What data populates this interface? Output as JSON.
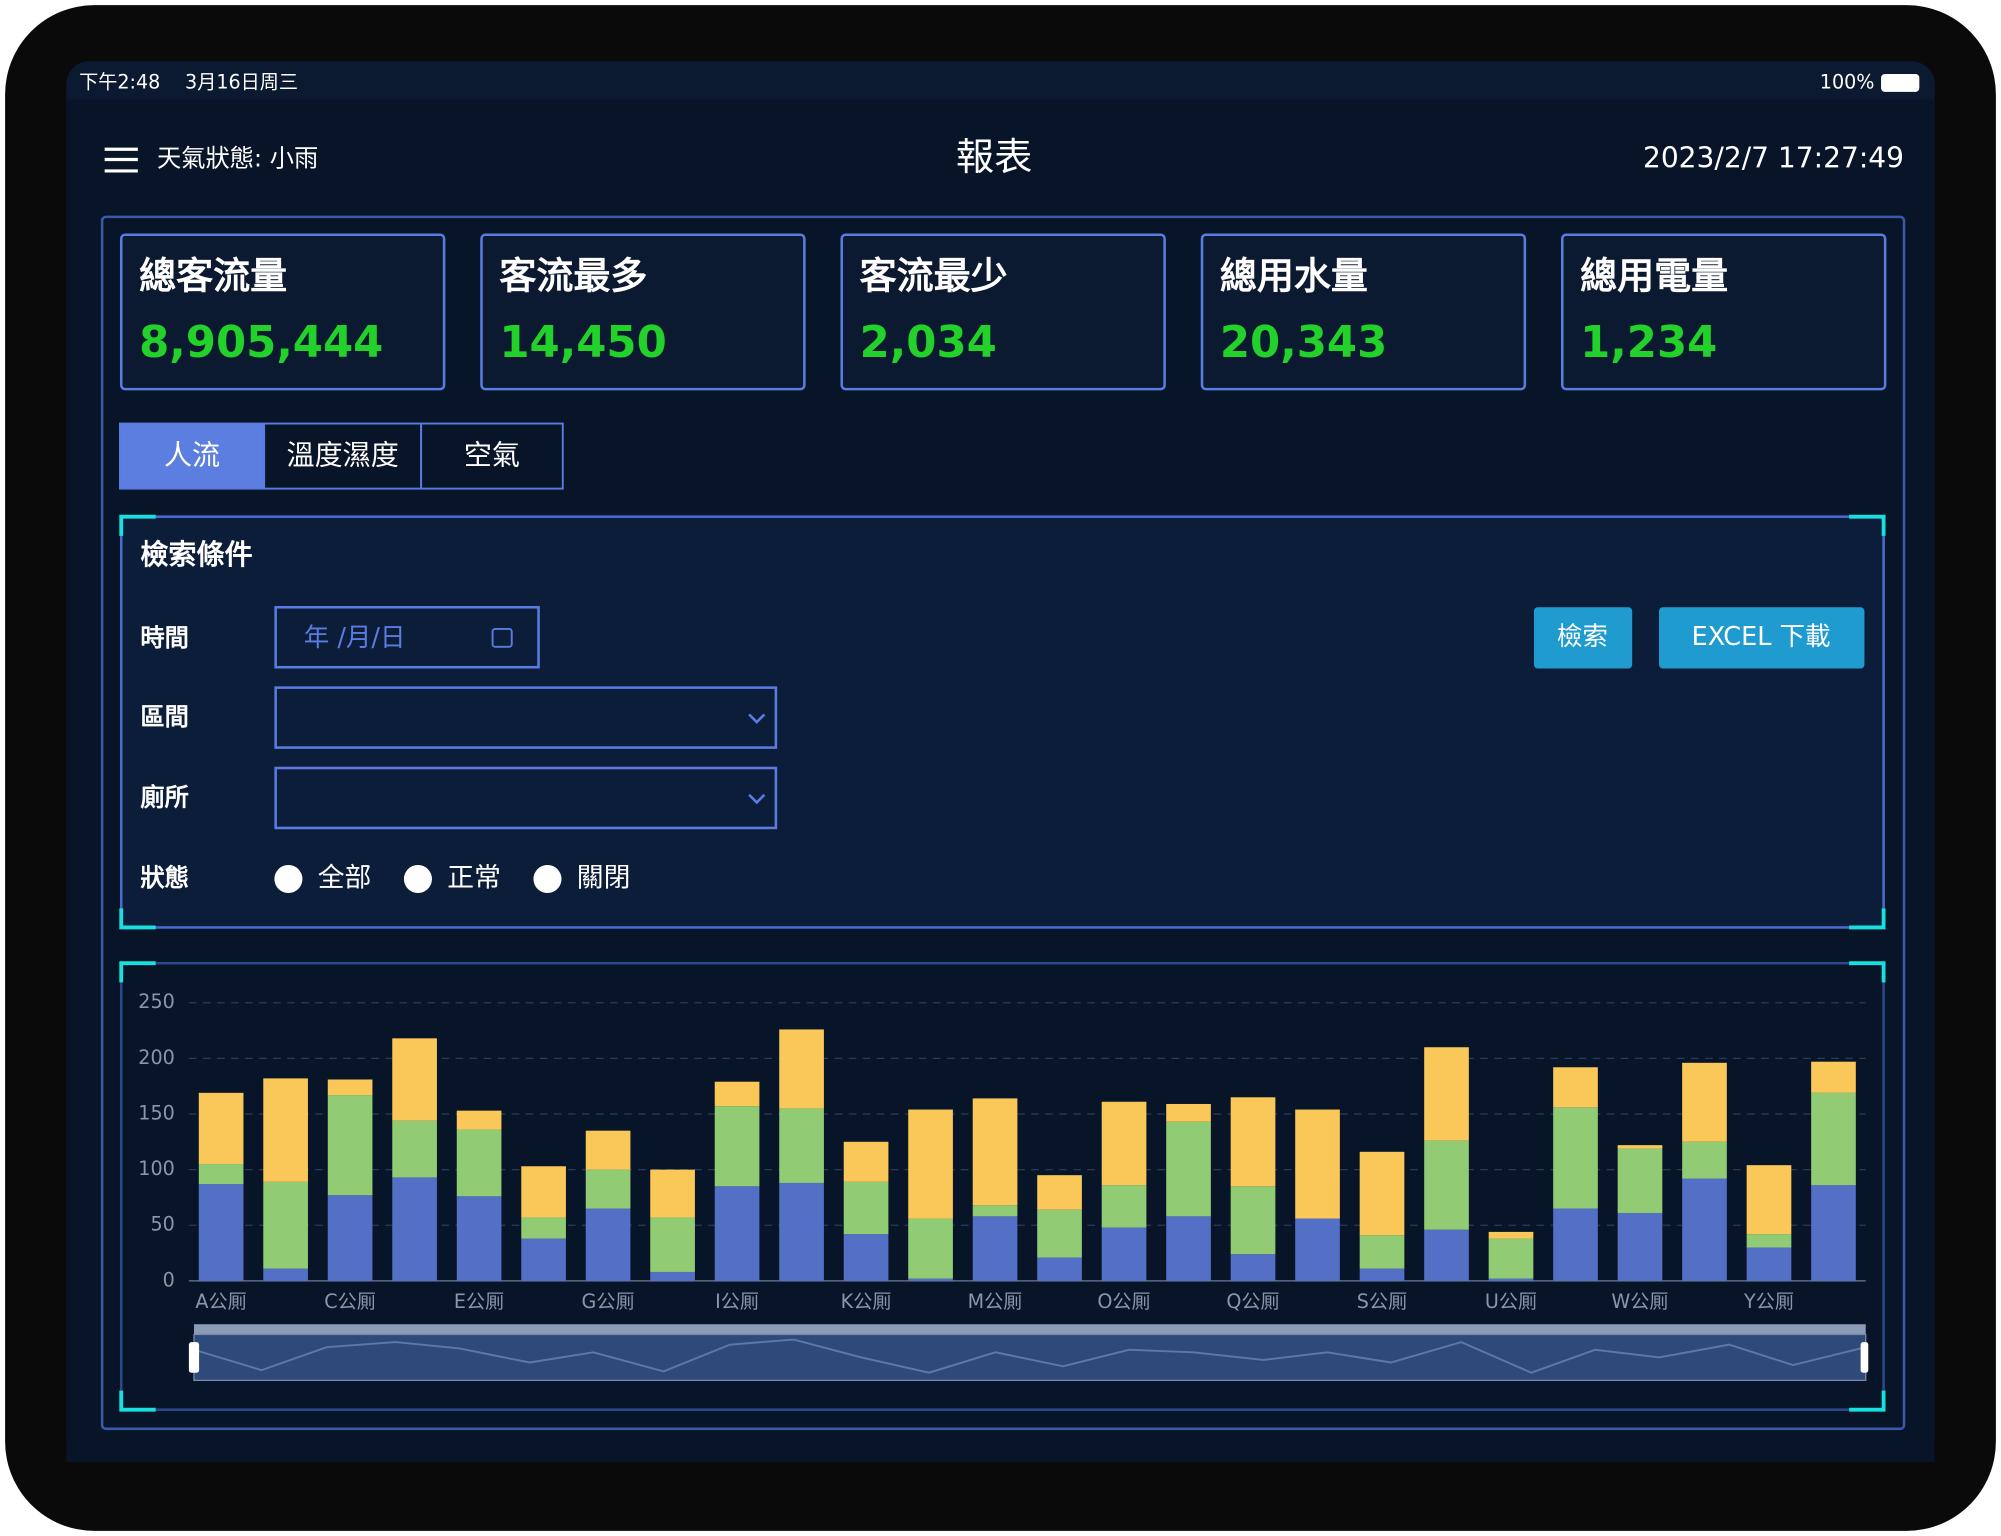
{
  "status_bar": {
    "time": "下午2:48",
    "date": "3月16日周三",
    "battery": "100%"
  },
  "header": {
    "weather": "天氣狀態: 小雨",
    "title": "報表",
    "datetime": "2023/2/7 17:27:49"
  },
  "stats": [
    {
      "label": "總客流量",
      "value": "8,905,444"
    },
    {
      "label": "客流最多",
      "value": "14,450"
    },
    {
      "label": "客流最少",
      "value": "2,034"
    },
    {
      "label": "總用水量",
      "value": "20,343"
    },
    {
      "label": "總用電量",
      "value": "1,234"
    }
  ],
  "tabs": [
    "人流",
    "溫度濕度",
    "空氣"
  ],
  "search": {
    "title": "檢索條件",
    "time_label": "時間",
    "date_placeholder": "年 /月/日",
    "range_label": "區間",
    "toilet_label": "廁所",
    "status_label": "狀態",
    "status_options": [
      "全部",
      "正常",
      "關閉"
    ],
    "search_button": "檢索",
    "excel_button": "EXCEL 下載"
  },
  "chart_data": {
    "type": "stacked_bar",
    "categories": [
      "A公厠",
      null,
      "C公厠",
      null,
      "E公厠",
      null,
      "G公厠",
      null,
      "I公厠",
      null,
      "K公厠",
      null,
      "M公厠",
      null,
      "O公厠",
      null,
      "Q公厠",
      null,
      "S公厠",
      null,
      "U公厠",
      null,
      "W公厠",
      null,
      "Y公厠",
      null
    ],
    "series": [
      {
        "color": "#5470c6",
        "values": [
          87,
          11,
          77,
          93,
          76,
          38,
          65,
          8,
          85,
          88,
          42,
          2,
          58,
          21,
          48,
          58,
          24,
          56,
          11,
          46,
          2,
          65,
          61,
          92,
          30,
          86
        ]
      },
      {
        "color": "#91cc75",
        "values": [
          18,
          78,
          90,
          51,
          60,
          19,
          35,
          49,
          72,
          67,
          47,
          54,
          10,
          43,
          38,
          85,
          61,
          0,
          30,
          80,
          36,
          91,
          58,
          33,
          12,
          83
        ]
      },
      {
        "color": "#fac858",
        "values": [
          64,
          93,
          14,
          74,
          17,
          46,
          35,
          43,
          22,
          71,
          36,
          98,
          96,
          31,
          75,
          16,
          80,
          98,
          75,
          84,
          6,
          36,
          3,
          71,
          62,
          28
        ]
      }
    ],
    "ylim": [
      0,
      250
    ],
    "yticks": [
      0,
      50,
      100,
      150,
      200,
      250
    ],
    "grid": true
  }
}
